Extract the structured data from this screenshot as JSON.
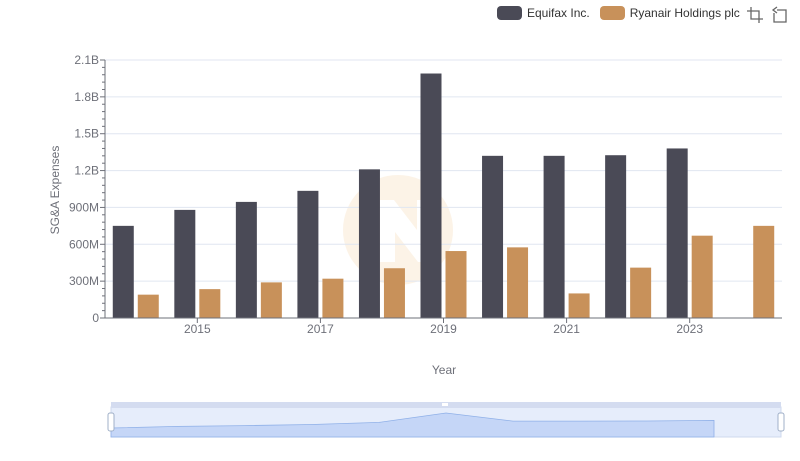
{
  "chart_data": {
    "type": "bar",
    "x": [
      2014,
      2015,
      2016,
      2017,
      2018,
      2019,
      2020,
      2021,
      2022,
      2023,
      2024
    ],
    "x_tick_labels": [
      "2015",
      "2017",
      "2019",
      "2021",
      "2023"
    ],
    "series": [
      {
        "name": "Equifax Inc.",
        "color": "#4a4a56",
        "values": [
          750000000,
          880000000,
          945000000,
          1035000000,
          1210000000,
          1990000000,
          1320000000,
          1320000000,
          1325000000,
          1380000000,
          null
        ]
      },
      {
        "name": "Ryanair Holdings plc",
        "color": "#c8915a",
        "values": [
          190000000,
          235000000,
          290000000,
          320000000,
          405000000,
          545000000,
          575000000,
          200000000,
          410000000,
          670000000,
          750000000
        ]
      }
    ],
    "xlabel": "Year",
    "ylabel": "SG&A Expenses",
    "ylim": [
      0,
      2100000000
    ],
    "y_ticks": [
      {
        "value": 0,
        "label": "0"
      },
      {
        "value": 300000000,
        "label": "300M"
      },
      {
        "value": 600000000,
        "label": "600M"
      },
      {
        "value": 900000000,
        "label": "900M"
      },
      {
        "value": 1200000000,
        "label": "1.2B"
      },
      {
        "value": 1500000000,
        "label": "1.5B"
      },
      {
        "value": 1800000000,
        "label": "1.8B"
      },
      {
        "value": 2100000000,
        "label": "2.1B"
      }
    ],
    "grid": true,
    "legend_position": "top-right",
    "datazoom": {
      "start_percent": 0,
      "end_percent": 100
    }
  },
  "toolbox": {
    "icons": [
      "zoom-icon",
      "restore-icon"
    ]
  }
}
